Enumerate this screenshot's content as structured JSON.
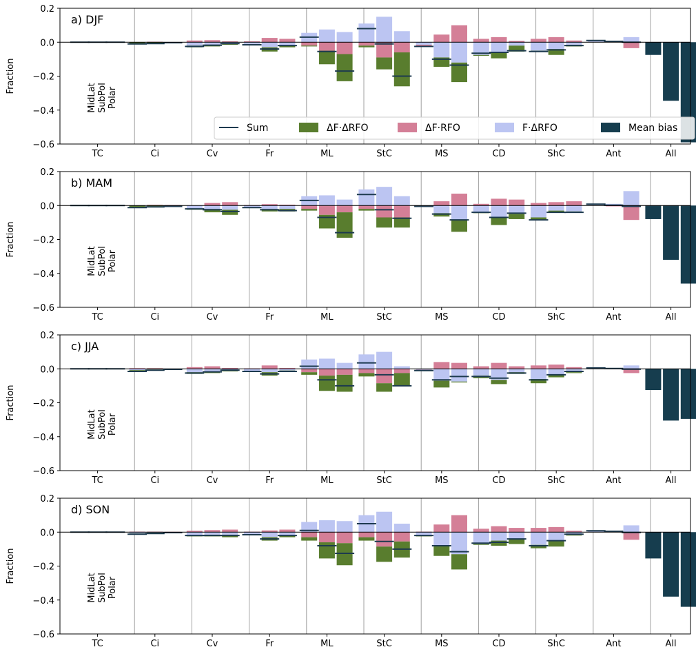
{
  "chart_data": {
    "type": "bar",
    "description_type": "grouped stacked bar chart, four panels",
    "categories": [
      "TC",
      "Ci",
      "Cv",
      "Fr",
      "ML",
      "StC",
      "MS",
      "CD",
      "ShC",
      "Ant",
      "All"
    ],
    "groups": [
      "MidLat",
      "SubPol",
      "Polar"
    ],
    "ylabel": "Fraction",
    "ylim": [
      -0.6,
      0.2
    ],
    "yticks": [
      0.2,
      0.0,
      -0.2,
      -0.4,
      -0.6
    ],
    "ytick_labels": [
      "0.2",
      "0.0",
      "−0.2",
      "−0.4",
      "−0.6"
    ],
    "legend": {
      "location": "bottom-right of panel a",
      "entries": [
        {
          "key": "sum",
          "label": "Sum",
          "style": "line",
          "color": "#1d3a4f"
        },
        {
          "key": "dfdrfo",
          "label": "ΔF·ΔRFO",
          "style": "patch",
          "color": "#597d2e"
        },
        {
          "key": "dfrfo",
          "label": "ΔF·RFO",
          "style": "patch",
          "color": "#d47f97"
        },
        {
          "key": "fdrfo",
          "label": "F·ΔRFO",
          "style": "patch",
          "color": "#bcc5f2"
        },
        {
          "key": "mean",
          "label": "Mean bias",
          "style": "patch",
          "color": "#163d4e"
        }
      ]
    },
    "colors": {
      "sum": "#1d3a4f",
      "dfdrfo": "#597d2e",
      "dfrfo": "#d47f97",
      "fdrfo": "#bcc5f2",
      "mean": "#163d4e"
    },
    "panels": [
      {
        "title": "a) DJF",
        "data": {
          "TC": {
            "fdrfo": [
              0,
              0,
              0
            ],
            "dfrfo": [
              0,
              0,
              0
            ],
            "dfdrfo": [
              0,
              0,
              0
            ],
            "sum": [
              0,
              0,
              0
            ]
          },
          "Ci": {
            "fdrfo": [
              0,
              0,
              0
            ],
            "dfrfo": [
              0,
              0.003,
              0
            ],
            "dfdrfo": [
              -0.01,
              -0.005,
              0
            ],
            "sum": [
              -0.01,
              -0.008,
              -0.003
            ]
          },
          "Cv": {
            "fdrfo": [
              -0.02,
              -0.015,
              -0.01
            ],
            "dfrfo": [
              0.01,
              0.012,
              0.005
            ],
            "dfdrfo": [
              -0.01,
              -0.01,
              -0.005
            ],
            "sum": [
              -0.025,
              -0.018,
              -0.008
            ]
          },
          "Fr": {
            "fdrfo": [
              -0.015,
              -0.03,
              -0.02
            ],
            "dfrfo": [
              0.005,
              0.025,
              0.02
            ],
            "dfdrfo": [
              0,
              -0.025,
              -0.01
            ],
            "sum": [
              -0.015,
              -0.04,
              -0.02
            ]
          },
          "ML": {
            "fdrfo": [
              0.055,
              0.075,
              0.06
            ],
            "dfrfo": [
              -0.02,
              -0.05,
              -0.07
            ],
            "dfdrfo": [
              -0.005,
              -0.08,
              -0.16
            ],
            "sum": [
              0.03,
              -0.055,
              -0.17
            ]
          },
          "StC": {
            "fdrfo": [
              0.11,
              0.15,
              0.065
            ],
            "dfrfo": [
              -0.02,
              -0.09,
              -0.06
            ],
            "dfdrfo": [
              -0.01,
              -0.07,
              -0.2
            ],
            "sum": [
              0.08,
              -0.01,
              -0.2
            ]
          },
          "MS": {
            "fdrfo": [
              -0.015,
              -0.09,
              -0.12
            ],
            "dfrfo": [
              -0.01,
              0.045,
              0.1
            ],
            "dfdrfo": [
              0,
              -0.055,
              -0.115
            ],
            "sum": [
              -0.025,
              -0.1,
              -0.135
            ]
          },
          "CD": {
            "fdrfo": [
              -0.075,
              -0.06,
              -0.02
            ],
            "dfrfo": [
              0.02,
              0.03,
              0.008
            ],
            "dfdrfo": [
              -0.005,
              -0.035,
              -0.035
            ],
            "sum": [
              -0.065,
              -0.06,
              -0.05
            ]
          },
          "ShC": {
            "fdrfo": [
              -0.05,
              -0.04,
              -0.015
            ],
            "dfrfo": [
              0.02,
              0.03,
              0.01
            ],
            "dfdrfo": [
              -0.005,
              -0.035,
              -0.01
            ],
            "sum": [
              -0.055,
              -0.045,
              -0.02
            ]
          },
          "Ant": {
            "fdrfo": [
              0.005,
              0.002,
              0.03
            ],
            "dfrfo": [
              0,
              0,
              -0.035
            ],
            "dfdrfo": [
              0,
              0,
              0
            ],
            "sum": [
              0.01,
              0.005,
              0
            ]
          },
          "All": {
            "mean": [
              -0.075,
              -0.345,
              -0.59
            ]
          }
        }
      },
      {
        "title": "b) MAM",
        "data": {
          "TC": {
            "fdrfo": [
              0,
              0,
              0
            ],
            "dfrfo": [
              0,
              0,
              0
            ],
            "dfdrfo": [
              0,
              0,
              0
            ],
            "sum": [
              0,
              0,
              0
            ]
          },
          "Ci": {
            "fdrfo": [
              0,
              0,
              0
            ],
            "dfrfo": [
              0,
              0.004,
              0.003
            ],
            "dfdrfo": [
              -0.01,
              -0.005,
              -0.003
            ],
            "sum": [
              -0.012,
              -0.008,
              -0.005
            ]
          },
          "Cv": {
            "fdrfo": [
              -0.02,
              -0.02,
              -0.025
            ],
            "dfrfo": [
              0,
              0.015,
              0.02
            ],
            "dfdrfo": [
              -0.005,
              -0.02,
              -0.03
            ],
            "sum": [
              -0.02,
              -0.025,
              -0.035
            ]
          },
          "Fr": {
            "fdrfo": [
              -0.01,
              -0.02,
              -0.02
            ],
            "dfrfo": [
              0.003,
              0.008,
              0.005
            ],
            "dfdrfo": [
              -0.003,
              -0.015,
              -0.015
            ],
            "sum": [
              -0.012,
              -0.025,
              -0.03
            ]
          },
          "ML": {
            "fdrfo": [
              0.055,
              0.06,
              0.035
            ],
            "dfrfo": [
              -0.02,
              -0.055,
              -0.04
            ],
            "dfdrfo": [
              -0.01,
              -0.08,
              -0.15
            ],
            "sum": [
              0.03,
              -0.07,
              -0.16
            ]
          },
          "StC": {
            "fdrfo": [
              0.095,
              0.11,
              0.055
            ],
            "dfrfo": [
              -0.02,
              -0.07,
              -0.07
            ],
            "dfdrfo": [
              -0.01,
              -0.06,
              -0.06
            ],
            "sum": [
              0.065,
              -0.025,
              -0.075
            ]
          },
          "MS": {
            "fdrfo": [
              -0.005,
              -0.045,
              -0.085
            ],
            "dfrfo": [
              0,
              0.025,
              0.07
            ],
            "dfdrfo": [
              0,
              -0.02,
              -0.07
            ],
            "sum": [
              -0.005,
              -0.05,
              -0.085
            ]
          },
          "CD": {
            "fdrfo": [
              -0.04,
              -0.07,
              -0.05
            ],
            "dfrfo": [
              0.01,
              0.04,
              0.035
            ],
            "dfdrfo": [
              -0.005,
              -0.045,
              -0.03
            ],
            "sum": [
              -0.04,
              -0.07,
              -0.045
            ]
          },
          "ShC": {
            "fdrfo": [
              -0.07,
              -0.03,
              -0.035
            ],
            "dfrfo": [
              0.015,
              0.02,
              0.025
            ],
            "dfdrfo": [
              -0.015,
              -0.01,
              -0.005
            ],
            "sum": [
              -0.085,
              -0.04,
              -0.04
            ]
          },
          "Ant": {
            "fdrfo": [
              0.003,
              0.01,
              0.085
            ],
            "dfrfo": [
              0,
              -0.005,
              -0.085
            ],
            "dfdrfo": [
              0,
              0,
              0
            ],
            "sum": [
              0.008,
              0.002,
              -0.005
            ]
          },
          "All": {
            "mean": [
              -0.08,
              -0.32,
              -0.46
            ]
          }
        }
      },
      {
        "title": "c) JJA",
        "data": {
          "TC": {
            "fdrfo": [
              0,
              0,
              0
            ],
            "dfrfo": [
              0,
              0,
              0
            ],
            "dfdrfo": [
              0,
              0,
              0
            ],
            "sum": [
              0,
              0,
              0
            ]
          },
          "Ci": {
            "fdrfo": [
              -0.008,
              0,
              0
            ],
            "dfrfo": [
              0.004,
              0.004,
              0
            ],
            "dfdrfo": [
              -0.005,
              -0.003,
              0
            ],
            "sum": [
              -0.015,
              -0.008,
              -0.003
            ]
          },
          "Cv": {
            "fdrfo": [
              -0.02,
              -0.015,
              -0.01
            ],
            "dfrfo": [
              0.01,
              0.015,
              0.005
            ],
            "dfdrfo": [
              -0.01,
              -0.01,
              -0.005
            ],
            "sum": [
              -0.025,
              -0.018,
              -0.008
            ]
          },
          "Fr": {
            "fdrfo": [
              -0.015,
              -0.02,
              -0.01
            ],
            "dfrfo": [
              0.003,
              0.02,
              0.005
            ],
            "dfdrfo": [
              0,
              -0.02,
              -0.008
            ],
            "sum": [
              -0.015,
              -0.03,
              -0.015
            ]
          },
          "ML": {
            "fdrfo": [
              0.055,
              0.06,
              0.035
            ],
            "dfrfo": [
              -0.02,
              -0.04,
              -0.035
            ],
            "dfdrfo": [
              -0.015,
              -0.09,
              -0.1
            ],
            "sum": [
              0.015,
              -0.065,
              -0.1
            ]
          },
          "StC": {
            "fdrfo": [
              0.085,
              0.1,
              0.015
            ],
            "dfrfo": [
              -0.025,
              -0.085,
              -0.025
            ],
            "dfdrfo": [
              -0.02,
              -0.05,
              -0.075
            ],
            "sum": [
              0.035,
              -0.035,
              -0.1
            ]
          },
          "MS": {
            "fdrfo": [
              -0.005,
              -0.07,
              -0.075
            ],
            "dfrfo": [
              -0.003,
              0.04,
              0.035
            ],
            "dfdrfo": [
              -0.002,
              -0.04,
              -0.005
            ],
            "sum": [
              -0.01,
              -0.065,
              -0.045
            ]
          },
          "CD": {
            "fdrfo": [
              -0.04,
              -0.065,
              -0.02
            ],
            "dfrfo": [
              0.015,
              0.035,
              0.015
            ],
            "dfdrfo": [
              -0.015,
              -0.025,
              -0.01
            ],
            "sum": [
              -0.045,
              -0.055,
              -0.025
            ]
          },
          "ShC": {
            "fdrfo": [
              -0.06,
              -0.035,
              -0.02
            ],
            "dfrfo": [
              0.02,
              0.025,
              0.01
            ],
            "dfdrfo": [
              -0.025,
              -0.015,
              -0.005
            ],
            "sum": [
              -0.065,
              -0.035,
              -0.015
            ]
          },
          "Ant": {
            "fdrfo": [
              0.003,
              0.003,
              0.02
            ],
            "dfrfo": [
              0,
              0,
              -0.025
            ],
            "dfdrfo": [
              0,
              0,
              0
            ],
            "sum": [
              0.005,
              0.002,
              -0.002
            ]
          },
          "All": {
            "mean": [
              -0.125,
              -0.305,
              -0.295
            ]
          }
        }
      },
      {
        "title": "d) SON",
        "data": {
          "TC": {
            "fdrfo": [
              0,
              0,
              0
            ],
            "dfrfo": [
              0,
              0,
              0
            ],
            "dfdrfo": [
              0,
              0,
              0
            ],
            "sum": [
              0,
              0,
              0
            ]
          },
          "Ci": {
            "fdrfo": [
              -0.008,
              -0.003,
              0
            ],
            "dfrfo": [
              0.003,
              0.003,
              0.002
            ],
            "dfdrfo": [
              -0.005,
              -0.003,
              -0.002
            ],
            "sum": [
              -0.012,
              -0.008,
              -0.003
            ]
          },
          "Cv": {
            "fdrfo": [
              -0.02,
              -0.015,
              -0.015
            ],
            "dfrfo": [
              0.008,
              0.012,
              0.015
            ],
            "dfdrfo": [
              -0.005,
              -0.01,
              -0.015
            ],
            "sum": [
              -0.02,
              -0.02,
              -0.02
            ]
          },
          "Fr": {
            "fdrfo": [
              -0.015,
              -0.03,
              -0.02
            ],
            "dfrfo": [
              0.003,
              0.01,
              0.015
            ],
            "dfdrfo": [
              -0.003,
              -0.02,
              -0.01
            ],
            "sum": [
              -0.015,
              -0.04,
              -0.02
            ]
          },
          "ML": {
            "fdrfo": [
              0.06,
              0.07,
              0.065
            ],
            "dfrfo": [
              -0.03,
              -0.06,
              -0.065
            ],
            "dfdrfo": [
              -0.02,
              -0.095,
              -0.13
            ],
            "sum": [
              0.01,
              -0.08,
              -0.125
            ]
          },
          "StC": {
            "fdrfo": [
              0.1,
              0.12,
              0.05
            ],
            "dfrfo": [
              -0.03,
              -0.085,
              -0.055
            ],
            "dfdrfo": [
              -0.02,
              -0.09,
              -0.095
            ],
            "sum": [
              0.05,
              -0.055,
              -0.1
            ]
          },
          "MS": {
            "fdrfo": [
              -0.02,
              -0.08,
              -0.13
            ],
            "dfrfo": [
              0.003,
              0.045,
              0.1
            ],
            "dfdrfo": [
              -0.005,
              -0.06,
              -0.09
            ],
            "sum": [
              -0.02,
              -0.08,
              -0.115
            ]
          },
          "CD": {
            "fdrfo": [
              -0.07,
              -0.05,
              -0.04
            ],
            "dfrfo": [
              0.02,
              0.035,
              0.025
            ],
            "dfdrfo": [
              -0.005,
              -0.03,
              -0.03
            ],
            "sum": [
              -0.065,
              -0.06,
              -0.04
            ]
          },
          "ShC": {
            "fdrfo": [
              -0.075,
              -0.05,
              -0.015
            ],
            "dfrfo": [
              0.025,
              0.03,
              0.008
            ],
            "dfdrfo": [
              -0.02,
              -0.035,
              -0.005
            ],
            "sum": [
              -0.08,
              -0.05,
              -0.012
            ]
          },
          "Ant": {
            "fdrfo": [
              0.005,
              0.003,
              0.04
            ],
            "dfrfo": [
              0,
              0,
              -0.045
            ],
            "dfdrfo": [
              0,
              0,
              0
            ],
            "sum": [
              0.008,
              0.005,
              -0.002
            ]
          },
          "All": {
            "mean": [
              -0.155,
              -0.38,
              -0.44
            ]
          }
        }
      }
    ]
  }
}
